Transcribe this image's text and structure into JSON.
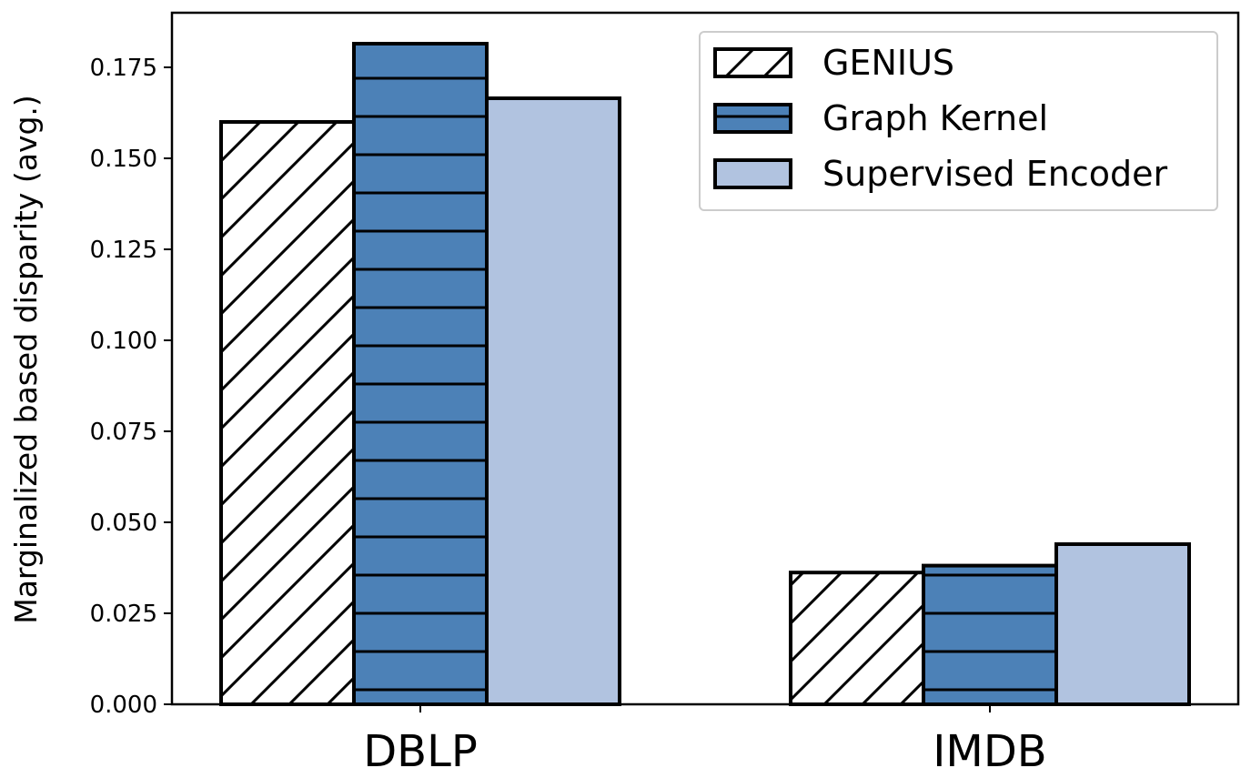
{
  "chart_data": {
    "type": "bar",
    "categories": [
      "DBLP",
      "IMDB"
    ],
    "series": [
      {
        "name": "GENIUS",
        "values": [
          0.16,
          0.0362
        ],
        "fill": "#ffffff",
        "hatch": "diagonal"
      },
      {
        "name": "Graph Kernel",
        "values": [
          0.1815,
          0.0381
        ],
        "fill": "#4c81b7",
        "hatch": "horizontal"
      },
      {
        "name": "Supervised Encoder",
        "values": [
          0.1665,
          0.044
        ],
        "fill": "#b1c3e0",
        "hatch": "none"
      }
    ],
    "ylabel": "Marginalized based disparity (avg.)",
    "xlabel": "",
    "ylim": [
      0,
      0.19
    ],
    "yticks": [
      {
        "value": 0.0,
        "label": "0.000"
      },
      {
        "value": 0.025,
        "label": "0.025"
      },
      {
        "value": 0.05,
        "label": "0.050"
      },
      {
        "value": 0.075,
        "label": "0.075"
      },
      {
        "value": 0.1,
        "label": "0.100"
      },
      {
        "value": 0.125,
        "label": "0.125"
      },
      {
        "value": 0.15,
        "label": "0.150"
      },
      {
        "value": 0.175,
        "label": "0.175"
      }
    ],
    "grid": false,
    "legend": "top-right"
  }
}
